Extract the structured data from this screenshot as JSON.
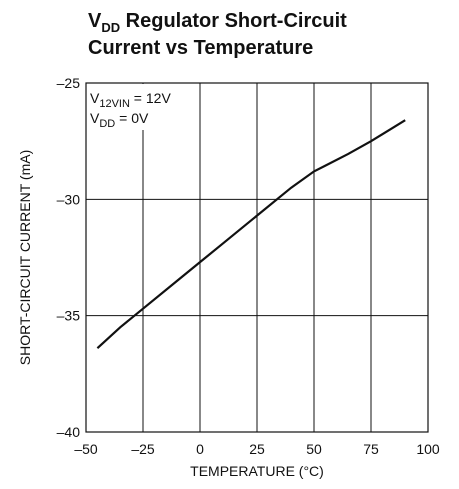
{
  "chart_data": {
    "type": "line",
    "title_line1": [
      "V",
      "DD",
      " Regulator Short-Circuit"
    ],
    "title_line2": "Current vs Temperature",
    "annotations": [
      [
        "V",
        "12VIN",
        " = 12V"
      ],
      [
        "V",
        "DD",
        " = 0V"
      ]
    ],
    "x_label": "TEMPERATURE (°C)",
    "y_label": "SHORT-CIRCUIT CURRENT (mA)",
    "x": [
      -45,
      -35,
      -25,
      -10,
      0,
      10,
      25,
      40,
      50,
      55,
      65,
      75,
      90
    ],
    "series": [
      {
        "name": "current",
        "color": "#111111",
        "values": [
          -36.4,
          -35.5,
          -34.7,
          -33.5,
          -32.7,
          -31.9,
          -30.7,
          -29.5,
          -28.8,
          -28.55,
          -28.05,
          -27.5,
          -26.6
        ]
      }
    ],
    "xlim": [
      -50,
      100
    ],
    "xticks": [
      {
        "value": -50,
        "label": "–50"
      },
      {
        "value": -25,
        "label": "–25"
      },
      0,
      25,
      50,
      75,
      100
    ],
    "ylim": [
      -40,
      -25
    ],
    "yticks": [
      {
        "value": -40,
        "label": "–40"
      },
      {
        "value": -35,
        "label": "–35"
      },
      {
        "value": -30,
        "label": "–30"
      },
      {
        "value": -25,
        "label": "–25"
      }
    ],
    "grid": true
  }
}
